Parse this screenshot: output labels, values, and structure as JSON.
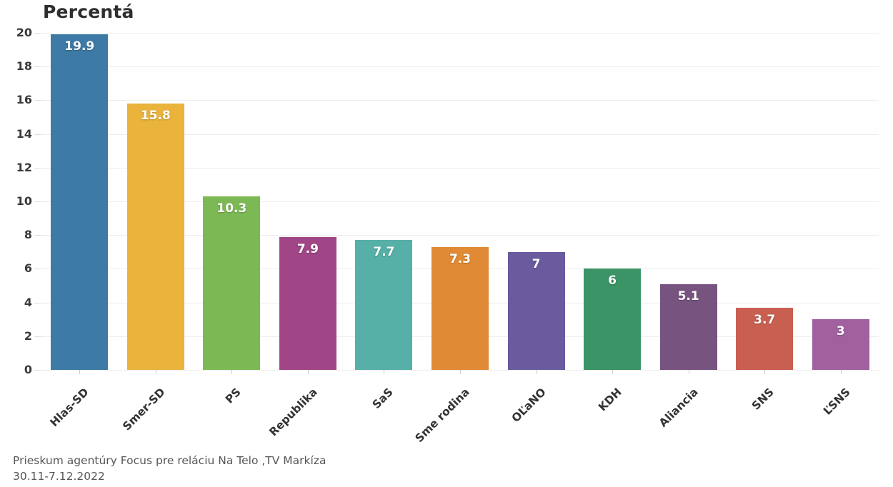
{
  "chart_data": {
    "type": "bar",
    "title": "Percentá",
    "categories": [
      "Hlas-SD",
      "Smer-SD",
      "PS",
      "Republika",
      "SaS",
      "Sme rodina",
      "OĽaNO",
      "KDH",
      "Aliancia",
      "SNS",
      "ĽSNS"
    ],
    "values": [
      19.9,
      15.8,
      10.3,
      7.9,
      7.7,
      7.3,
      7,
      6,
      5.1,
      3.7,
      3
    ],
    "value_labels": [
      "19.9",
      "15.8",
      "10.3",
      "7.9",
      "7.7",
      "7.3",
      "7",
      "6",
      "5.1",
      "3.7",
      "3"
    ],
    "bar_colors": [
      "#3d7aa5",
      "#e9b33c",
      "#7cb954",
      "#a04687",
      "#56b0a8",
      "#e08a35",
      "#6a5a9e",
      "#3b9465",
      "#77547f",
      "#c95f51",
      "#a0619e"
    ],
    "xlabel": "",
    "ylabel": "",
    "ylim": [
      0,
      20
    ],
    "yticks": [
      0,
      2,
      4,
      6,
      8,
      10,
      12,
      14,
      16,
      18,
      20
    ],
    "grid": "horizontal",
    "legend": "none",
    "value_label_color": "#ffffff",
    "notes_line1": "Prieskum agentúry Focus pre reláciu Na Telo ,TV Markíza",
    "notes_line2": "30.11-7.12.2022"
  }
}
